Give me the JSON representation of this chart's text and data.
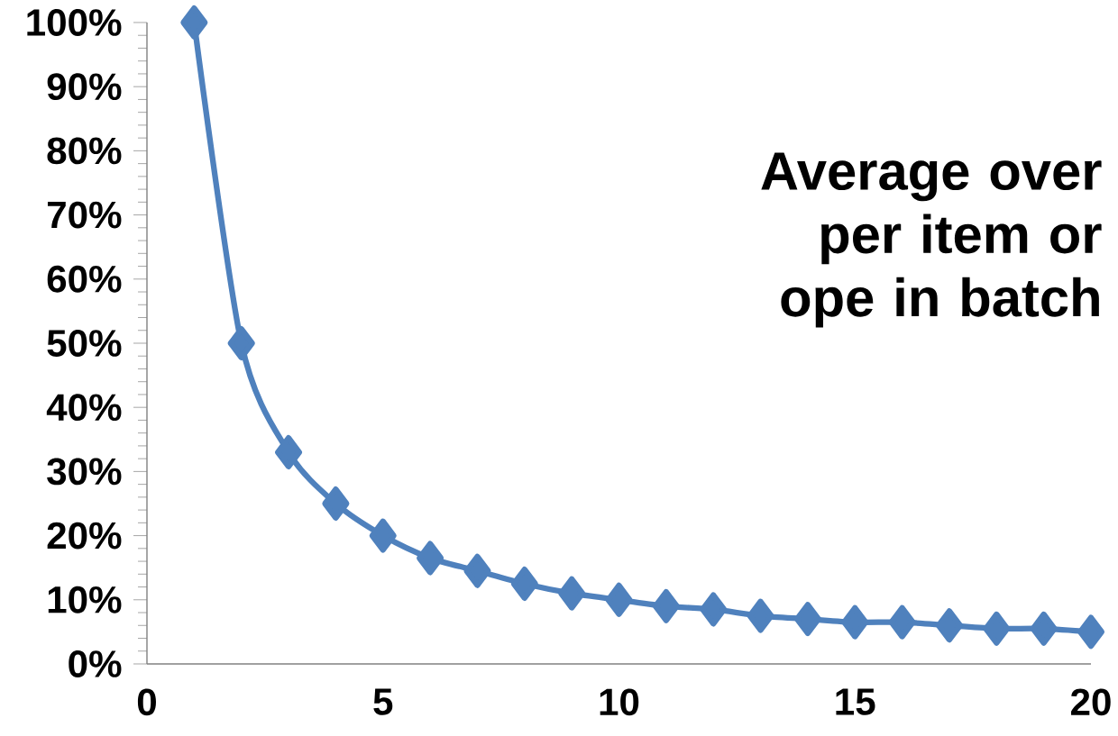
{
  "chart_data": {
    "type": "line",
    "x": [
      1,
      2,
      3,
      4,
      5,
      6,
      7,
      8,
      9,
      10,
      11,
      12,
      13,
      14,
      15,
      16,
      17,
      18,
      19,
      20
    ],
    "values": [
      100,
      50,
      33,
      25,
      20,
      16.5,
      14.5,
      12.5,
      11,
      10,
      9,
      8.5,
      7.5,
      7,
      6.5,
      6.5,
      6,
      5.5,
      5.5,
      5
    ],
    "color": "#4f81bd",
    "marker": "diamond",
    "line_style": "solid",
    "xlim": [
      0,
      20
    ],
    "xticks": [
      0,
      5,
      10,
      15,
      20
    ],
    "ylim": [
      0,
      100
    ],
    "yticks": [
      {
        "value": 0,
        "label": "0%"
      },
      {
        "value": 10,
        "label": "10%"
      },
      {
        "value": 20,
        "label": "20%"
      },
      {
        "value": 30,
        "label": "30%"
      },
      {
        "value": 40,
        "label": "40%"
      },
      {
        "value": 50,
        "label": "50%"
      },
      {
        "value": 60,
        "label": "60%"
      },
      {
        "value": 70,
        "label": "70%"
      },
      {
        "value": 80,
        "label": "80%"
      },
      {
        "value": 90,
        "label": "90%"
      },
      {
        "value": 100,
        "label": "100%"
      }
    ],
    "annotations": [
      "Average over per item or ope in batch"
    ]
  }
}
